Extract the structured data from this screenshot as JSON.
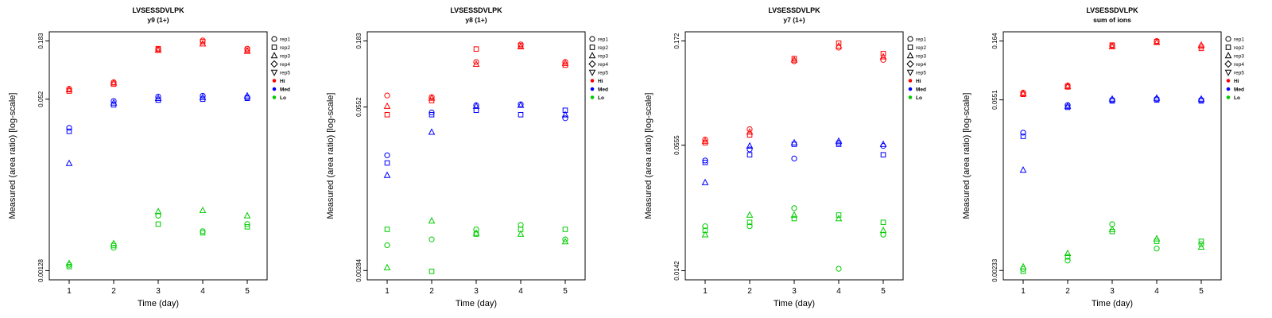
{
  "page": {
    "background": "#ffffff"
  },
  "legend": {
    "reps": [
      {
        "label": "rep1",
        "marker": "circle"
      },
      {
        "label": "rep2",
        "marker": "square"
      },
      {
        "label": "rep3",
        "marker": "triangle-up"
      },
      {
        "label": "rep4",
        "marker": "diamond"
      },
      {
        "label": "rep5",
        "marker": "triangle-down"
      }
    ],
    "levels": [
      {
        "label": "Hi",
        "color": "#ff0000"
      },
      {
        "label": "Med",
        "color": "#0000ff"
      },
      {
        "label": "Lo",
        "color": "#00cc00"
      }
    ]
  },
  "chart_data": [
    {
      "type": "scatter",
      "title": "LVSESSDVLPK",
      "subtitle": "y9 (1+)",
      "xlabel": "Time (day)",
      "ylabel": "Measured (area ratio) [log-scale]",
      "x_ticks": [
        1,
        2,
        3,
        4,
        5
      ],
      "y_scale": "log",
      "ylim": [
        0.00105,
        0.223
      ],
      "y_ticks": [
        {
          "value": 0.183,
          "label": "0.183"
        },
        {
          "value": 0.052,
          "label": "0.052"
        },
        {
          "value": 0.00128,
          "label": "0.00128"
        }
      ],
      "series": [
        {
          "name": "Hi",
          "color": "#ff0000",
          "points": [
            [
              1,
              1,
              0.065
            ],
            [
              1,
              2,
              0.062
            ],
            [
              1,
              3,
              0.064
            ],
            [
              2,
              1,
              0.075
            ],
            [
              2,
              2,
              0.072
            ],
            [
              2,
              3,
              0.074
            ],
            [
              3,
              1,
              0.152
            ],
            [
              3,
              2,
              0.155
            ],
            [
              3,
              3,
              0.15
            ],
            [
              4,
              1,
              0.185
            ],
            [
              4,
              2,
              0.18
            ],
            [
              4,
              3,
              0.172
            ],
            [
              5,
              1,
              0.155
            ],
            [
              5,
              2,
              0.15
            ],
            [
              5,
              3,
              0.147
            ]
          ]
        },
        {
          "name": "Med",
          "color": "#0000ff",
          "points": [
            [
              1,
              1,
              0.028
            ],
            [
              1,
              2,
              0.026
            ],
            [
              1,
              3,
              0.013
            ],
            [
              2,
              1,
              0.05
            ],
            [
              2,
              2,
              0.046
            ],
            [
              2,
              3,
              0.048
            ],
            [
              3,
              1,
              0.055
            ],
            [
              3,
              2,
              0.051
            ],
            [
              3,
              3,
              0.053
            ],
            [
              4,
              1,
              0.056
            ],
            [
              4,
              2,
              0.052
            ],
            [
              4,
              3,
              0.054
            ],
            [
              5,
              1,
              0.054
            ],
            [
              5,
              2,
              0.053
            ],
            [
              5,
              3,
              0.056
            ]
          ]
        },
        {
          "name": "Lo",
          "color": "#00cc00",
          "points": [
            [
              1,
              1,
              0.00145
            ],
            [
              1,
              2,
              0.0014
            ],
            [
              1,
              3,
              0.0015
            ],
            [
              2,
              1,
              0.0021
            ],
            [
              2,
              2,
              0.0022
            ],
            [
              2,
              3,
              0.0023
            ],
            [
              3,
              1,
              0.0042
            ],
            [
              3,
              2,
              0.0035
            ],
            [
              3,
              3,
              0.0046
            ],
            [
              4,
              1,
              0.003
            ],
            [
              4,
              2,
              0.0029
            ],
            [
              4,
              3,
              0.0047
            ],
            [
              5,
              1,
              0.0035
            ],
            [
              5,
              2,
              0.0033
            ],
            [
              5,
              3,
              0.0042
            ]
          ]
        }
      ]
    },
    {
      "type": "scatter",
      "title": "LVSESSDVLPK",
      "subtitle": "y8 (1+)",
      "xlabel": "Time (day)",
      "ylabel": "Measured (area ratio) [log-scale]",
      "x_ticks": [
        1,
        2,
        3,
        4,
        5
      ],
      "y_scale": "log",
      "ylim": [
        0.0024,
        0.216
      ],
      "y_ticks": [
        {
          "value": 0.183,
          "label": "0.183"
        },
        {
          "value": 0.0552,
          "label": "0.0552"
        },
        {
          "value": 0.00284,
          "label": "0.00284"
        }
      ],
      "series": [
        {
          "name": "Hi",
          "color": "#ff0000",
          "points": [
            [
              1,
              1,
              0.068
            ],
            [
              1,
              2,
              0.048
            ],
            [
              1,
              3,
              0.056
            ],
            [
              2,
              1,
              0.066
            ],
            [
              2,
              2,
              0.062
            ],
            [
              2,
              3,
              0.065
            ],
            [
              3,
              1,
              0.125
            ],
            [
              3,
              2,
              0.158
            ],
            [
              3,
              3,
              0.12
            ],
            [
              4,
              1,
              0.172
            ],
            [
              4,
              2,
              0.168
            ],
            [
              4,
              3,
              0.165
            ],
            [
              5,
              1,
              0.125
            ],
            [
              5,
              2,
              0.118
            ],
            [
              5,
              3,
              0.122
            ]
          ]
        },
        {
          "name": "Med",
          "color": "#0000ff",
          "points": [
            [
              1,
              1,
              0.023
            ],
            [
              1,
              2,
              0.02
            ],
            [
              1,
              3,
              0.016
            ],
            [
              2,
              1,
              0.05
            ],
            [
              2,
              2,
              0.048
            ],
            [
              2,
              3,
              0.035
            ],
            [
              3,
              1,
              0.057
            ],
            [
              3,
              2,
              0.052
            ],
            [
              3,
              3,
              0.056
            ],
            [
              4,
              1,
              0.058
            ],
            [
              4,
              2,
              0.048
            ],
            [
              4,
              3,
              0.057
            ],
            [
              5,
              1,
              0.045
            ],
            [
              5,
              2,
              0.052
            ],
            [
              5,
              3,
              0.048
            ]
          ]
        },
        {
          "name": "Lo",
          "color": "#00cc00",
          "points": [
            [
              1,
              1,
              0.0045
            ],
            [
              1,
              2,
              0.006
            ],
            [
              1,
              3,
              0.003
            ],
            [
              2,
              1,
              0.005
            ],
            [
              2,
              2,
              0.0028
            ],
            [
              2,
              3,
              0.007
            ],
            [
              3,
              1,
              0.006
            ],
            [
              3,
              2,
              0.0055
            ],
            [
              3,
              3,
              0.0056
            ],
            [
              4,
              1,
              0.0065
            ],
            [
              4,
              2,
              0.006
            ],
            [
              4,
              3,
              0.0055
            ],
            [
              5,
              1,
              0.005
            ],
            [
              5,
              2,
              0.006
            ],
            [
              5,
              3,
              0.0048
            ]
          ]
        }
      ]
    },
    {
      "type": "scatter",
      "title": "LVSESSDVLPK",
      "subtitle": "y7 (1+)",
      "xlabel": "Time (day)",
      "ylabel": "Measured (area ratio) [log-scale]",
      "x_ticks": [
        1,
        2,
        3,
        4,
        5
      ],
      "y_scale": "log",
      "ylim": [
        0.01286,
        0.19
      ],
      "y_ticks": [
        {
          "value": 0.172,
          "label": "0.172"
        },
        {
          "value": 0.0555,
          "label": "0.0555"
        },
        {
          "value": 0.0142,
          "label": "0.0142"
        }
      ],
      "series": [
        {
          "name": "Hi",
          "color": "#ff0000",
          "points": [
            [
              1,
              1,
              0.059
            ],
            [
              1,
              2,
              0.057
            ],
            [
              1,
              3,
              0.058
            ],
            [
              2,
              1,
              0.066
            ],
            [
              2,
              2,
              0.062
            ],
            [
              2,
              3,
              0.064
            ],
            [
              3,
              1,
              0.138
            ],
            [
              3,
              2,
              0.142
            ],
            [
              3,
              3,
              0.14
            ],
            [
              4,
              1,
              0.16
            ],
            [
              4,
              2,
              0.168
            ],
            [
              4,
              3,
              0.163
            ],
            [
              5,
              1,
              0.14
            ],
            [
              5,
              2,
              0.15
            ],
            [
              5,
              3,
              0.145
            ]
          ]
        },
        {
          "name": "Med",
          "color": "#0000ff",
          "points": [
            [
              1,
              1,
              0.047
            ],
            [
              1,
              2,
              0.046
            ],
            [
              1,
              3,
              0.037
            ],
            [
              2,
              1,
              0.053
            ],
            [
              2,
              2,
              0.05
            ],
            [
              2,
              3,
              0.055
            ],
            [
              3,
              1,
              0.048
            ],
            [
              3,
              2,
              0.056
            ],
            [
              3,
              3,
              0.057
            ],
            [
              4,
              1,
              0.057
            ],
            [
              4,
              2,
              0.056
            ],
            [
              4,
              3,
              0.058
            ],
            [
              5,
              1,
              0.055
            ],
            [
              5,
              2,
              0.05
            ],
            [
              5,
              3,
              0.056
            ]
          ]
        },
        {
          "name": "Lo",
          "color": "#00cc00",
          "points": [
            [
              1,
              1,
              0.023
            ],
            [
              1,
              2,
              0.022
            ],
            [
              1,
              3,
              0.021
            ],
            [
              2,
              1,
              0.023
            ],
            [
              2,
              2,
              0.024
            ],
            [
              2,
              3,
              0.026
            ],
            [
              3,
              1,
              0.028
            ],
            [
              3,
              2,
              0.025
            ],
            [
              3,
              3,
              0.026
            ],
            [
              4,
              1,
              0.0145
            ],
            [
              4,
              2,
              0.026
            ],
            [
              4,
              3,
              0.025
            ],
            [
              5,
              1,
              0.021
            ],
            [
              5,
              2,
              0.024
            ],
            [
              5,
              3,
              0.022
            ]
          ]
        }
      ]
    },
    {
      "type": "scatter",
      "title": "LVSESSDVLPK",
      "subtitle": "sum of ions",
      "xlabel": "Time (day)",
      "ylabel": "Measured (area ratio) [log-scale]",
      "x_ticks": [
        1,
        2,
        3,
        4,
        5
      ],
      "y_scale": "log",
      "ylim": [
        0.00196,
        0.1945
      ],
      "y_ticks": [
        {
          "value": 0.164,
          "label": "0.164"
        },
        {
          "value": 0.0551,
          "label": "0.0551"
        },
        {
          "value": 0.00233,
          "label": "0.00233"
        }
      ],
      "series": [
        {
          "name": "Hi",
          "color": "#ff0000",
          "points": [
            [
              1,
              1,
              0.063
            ],
            [
              1,
              2,
              0.061
            ],
            [
              1,
              3,
              0.062
            ],
            [
              2,
              1,
              0.072
            ],
            [
              2,
              2,
              0.07
            ],
            [
              2,
              3,
              0.071
            ],
            [
              3,
              1,
              0.15
            ],
            [
              3,
              2,
              0.152
            ],
            [
              3,
              3,
              0.148
            ],
            [
              4,
              1,
              0.164
            ],
            [
              4,
              2,
              0.162
            ],
            [
              4,
              3,
              0.16
            ],
            [
              5,
              1,
              0.148
            ],
            [
              5,
              2,
              0.143
            ],
            [
              5,
              3,
              0.152
            ]
          ]
        },
        {
          "name": "Med",
          "color": "#0000ff",
          "points": [
            [
              1,
              1,
              0.03
            ],
            [
              1,
              2,
              0.028
            ],
            [
              1,
              3,
              0.015
            ],
            [
              2,
              1,
              0.05
            ],
            [
              2,
              2,
              0.048
            ],
            [
              2,
              3,
              0.049
            ],
            [
              3,
              1,
              0.055
            ],
            [
              3,
              2,
              0.054
            ],
            [
              3,
              3,
              0.056
            ],
            [
              4,
              1,
              0.056
            ],
            [
              4,
              2,
              0.055
            ],
            [
              4,
              3,
              0.057
            ],
            [
              5,
              1,
              0.055
            ],
            [
              5,
              2,
              0.054
            ],
            [
              5,
              3,
              0.056
            ]
          ]
        },
        {
          "name": "Lo",
          "color": "#00cc00",
          "points": [
            [
              1,
              1,
              0.0024
            ],
            [
              1,
              2,
              0.0023
            ],
            [
              1,
              3,
              0.0025
            ],
            [
              2,
              1,
              0.0028
            ],
            [
              2,
              2,
              0.003
            ],
            [
              2,
              3,
              0.0032
            ],
            [
              3,
              1,
              0.0055
            ],
            [
              3,
              2,
              0.0048
            ],
            [
              3,
              3,
              0.005
            ],
            [
              4,
              1,
              0.0035
            ],
            [
              4,
              2,
              0.004
            ],
            [
              4,
              3,
              0.0042
            ],
            [
              5,
              1,
              0.0038
            ],
            [
              5,
              2,
              0.004
            ],
            [
              5,
              3,
              0.0036
            ]
          ]
        }
      ]
    }
  ]
}
